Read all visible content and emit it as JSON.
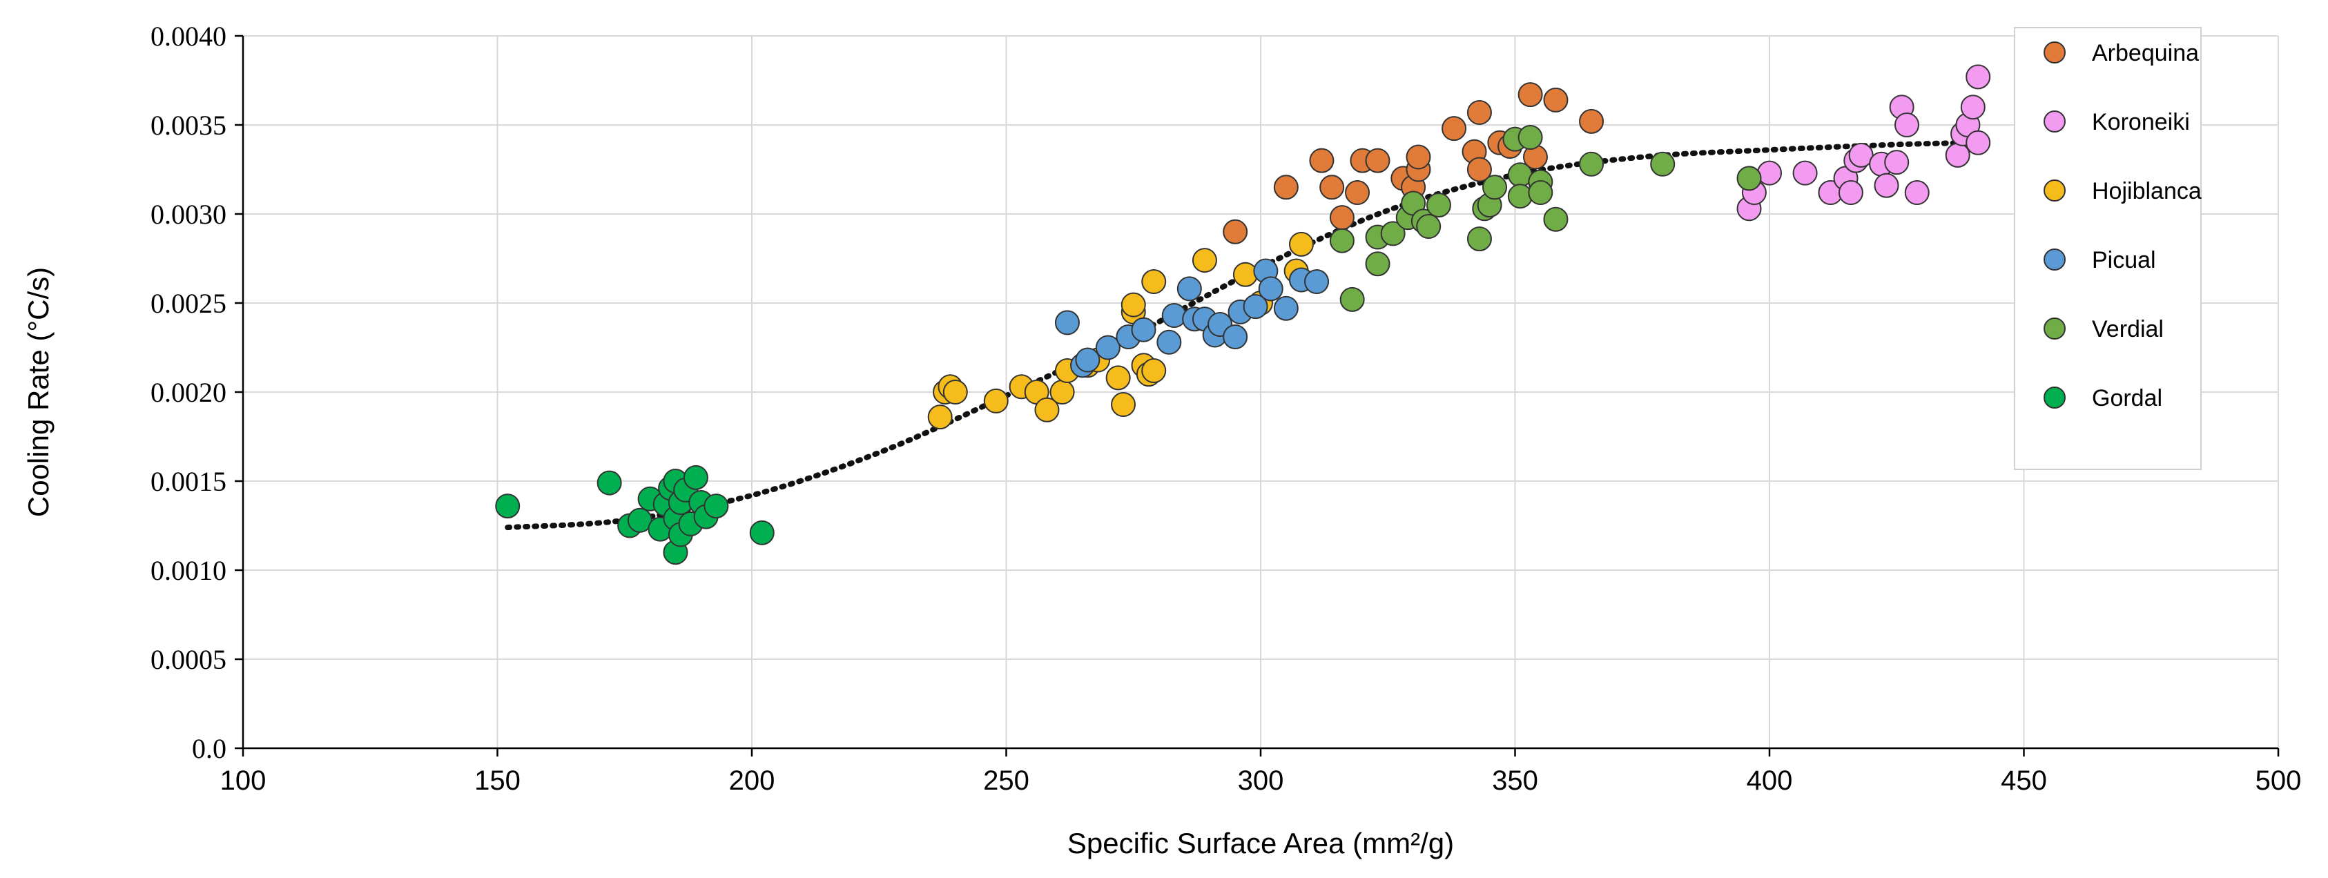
{
  "chart_data": {
    "type": "scatter",
    "title": "",
    "xlabel": "Specific Surface Area (mm²/g)",
    "ylabel": "Cooling Rate (°C/s)",
    "xlim": [
      100,
      500
    ],
    "ylim": [
      0.0,
      0.004
    ],
    "xticks": [
      "100",
      "150",
      "200",
      "250",
      "300",
      "350",
      "400",
      "450",
      "500"
    ],
    "yticks": [
      "0.0",
      "0.0005",
      "0.0010",
      "0.0015",
      "0.0020",
      "0.0025",
      "0.0030",
      "0.0035",
      "0.0040"
    ],
    "grid": true,
    "legend_position": "right",
    "series": [
      {
        "name": "Arbequina",
        "color": "#E07B39",
        "points": [
          [
            295,
            0.0029
          ],
          [
            305,
            0.00315
          ],
          [
            312,
            0.0033
          ],
          [
            314,
            0.00315
          ],
          [
            316,
            0.00298
          ],
          [
            319,
            0.00312
          ],
          [
            320,
            0.0033
          ],
          [
            323,
            0.0033
          ],
          [
            328,
            0.0032
          ],
          [
            330,
            0.00315
          ],
          [
            331,
            0.00325
          ],
          [
            331,
            0.00332
          ],
          [
            338,
            0.00348
          ],
          [
            342,
            0.00335
          ],
          [
            343,
            0.00357
          ],
          [
            343,
            0.00325
          ],
          [
            347,
            0.0034
          ],
          [
            349,
            0.00338
          ],
          [
            353,
            0.00367
          ],
          [
            354,
            0.00332
          ],
          [
            358,
            0.00364
          ],
          [
            365,
            0.00352
          ]
        ]
      },
      {
        "name": "Koroneiki",
        "color": "#F39BF0",
        "points": [
          [
            396,
            0.00303
          ],
          [
            397,
            0.00312
          ],
          [
            400,
            0.00323
          ],
          [
            407,
            0.00323
          ],
          [
            412,
            0.00312
          ],
          [
            415,
            0.0032
          ],
          [
            416,
            0.00312
          ],
          [
            417,
            0.0033
          ],
          [
            418,
            0.00333
          ],
          [
            422,
            0.00328
          ],
          [
            423,
            0.00316
          ],
          [
            425,
            0.00329
          ],
          [
            426,
            0.0036
          ],
          [
            427,
            0.0035
          ],
          [
            429,
            0.00312
          ],
          [
            437,
            0.00333
          ],
          [
            438,
            0.00345
          ],
          [
            439,
            0.0035
          ],
          [
            440,
            0.0036
          ],
          [
            441,
            0.0034
          ],
          [
            441,
            0.00377
          ]
        ]
      },
      {
        "name": "Hojiblanca",
        "color": "#F5BC1C",
        "points": [
          [
            237,
            0.00186
          ],
          [
            238,
            0.002
          ],
          [
            239,
            0.00203
          ],
          [
            240,
            0.002
          ],
          [
            248,
            0.00195
          ],
          [
            253,
            0.00203
          ],
          [
            256,
            0.002
          ],
          [
            258,
            0.0019
          ],
          [
            261,
            0.002
          ],
          [
            262,
            0.00212
          ],
          [
            266,
            0.00215
          ],
          [
            268,
            0.00218
          ],
          [
            272,
            0.00208
          ],
          [
            273,
            0.00193
          ],
          [
            275,
            0.00245
          ],
          [
            275,
            0.00249
          ],
          [
            277,
            0.00215
          ],
          [
            278,
            0.0021
          ],
          [
            279,
            0.00212
          ],
          [
            279,
            0.00262
          ],
          [
            289,
            0.00274
          ],
          [
            297,
            0.00266
          ],
          [
            300,
            0.0025
          ],
          [
            307,
            0.00268
          ],
          [
            308,
            0.00283
          ]
        ]
      },
      {
        "name": "Picual",
        "color": "#5B9BD5",
        "points": [
          [
            262,
            0.00239
          ],
          [
            265,
            0.00215
          ],
          [
            266,
            0.00218
          ],
          [
            270,
            0.00225
          ],
          [
            274,
            0.00231
          ],
          [
            277,
            0.00235
          ],
          [
            282,
            0.00228
          ],
          [
            283,
            0.00243
          ],
          [
            286,
            0.00258
          ],
          [
            287,
            0.00241
          ],
          [
            289,
            0.00241
          ],
          [
            291,
            0.00232
          ],
          [
            292,
            0.00238
          ],
          [
            295,
            0.00231
          ],
          [
            296,
            0.00245
          ],
          [
            299,
            0.00248
          ],
          [
            301,
            0.00268
          ],
          [
            302,
            0.00258
          ],
          [
            305,
            0.00247
          ],
          [
            308,
            0.00263
          ],
          [
            311,
            0.00262
          ]
        ]
      },
      {
        "name": "Verdial",
        "color": "#70AD47",
        "points": [
          [
            316,
            0.00285
          ],
          [
            318,
            0.00252
          ],
          [
            323,
            0.00272
          ],
          [
            323,
            0.00287
          ],
          [
            326,
            0.00289
          ],
          [
            329,
            0.00298
          ],
          [
            330,
            0.00306
          ],
          [
            332,
            0.00296
          ],
          [
            333,
            0.00293
          ],
          [
            335,
            0.00305
          ],
          [
            343,
            0.00286
          ],
          [
            344,
            0.00303
          ],
          [
            345,
            0.00305
          ],
          [
            346,
            0.00315
          ],
          [
            350,
            0.00342
          ],
          [
            351,
            0.00322
          ],
          [
            351,
            0.0031
          ],
          [
            353,
            0.00343
          ],
          [
            355,
            0.00318
          ],
          [
            355,
            0.00312
          ],
          [
            358,
            0.00297
          ],
          [
            365,
            0.00328
          ],
          [
            379,
            0.00328
          ],
          [
            396,
            0.0032
          ]
        ]
      },
      {
        "name": "Gordal",
        "color": "#00B050",
        "points": [
          [
            152,
            0.00136
          ],
          [
            172,
            0.00149
          ],
          [
            176,
            0.00125
          ],
          [
            178,
            0.00128
          ],
          [
            180,
            0.0014
          ],
          [
            182,
            0.00123
          ],
          [
            183,
            0.00137
          ],
          [
            184,
            0.00146
          ],
          [
            185,
            0.0011
          ],
          [
            185,
            0.0015
          ],
          [
            185,
            0.00129
          ],
          [
            186,
            0.0012
          ],
          [
            186,
            0.00138
          ],
          [
            187,
            0.00145
          ],
          [
            188,
            0.00126
          ],
          [
            189,
            0.00152
          ],
          [
            190,
            0.00138
          ],
          [
            191,
            0.0013
          ],
          [
            193,
            0.00136
          ],
          [
            202,
            0.00121
          ]
        ]
      }
    ],
    "trendline": {
      "style": "dotted",
      "color": "#111111",
      "points": [
        [
          152,
          0.00124
        ],
        [
          175,
          0.00128
        ],
        [
          200,
          0.00142
        ],
        [
          225,
          0.00166
        ],
        [
          250,
          0.00198
        ],
        [
          275,
          0.00232
        ],
        [
          300,
          0.0027
        ],
        [
          325,
          0.00302
        ],
        [
          350,
          0.00322
        ],
        [
          375,
          0.00332
        ],
        [
          400,
          0.00336
        ],
        [
          425,
          0.00339
        ],
        [
          440,
          0.0034
        ]
      ]
    }
  }
}
